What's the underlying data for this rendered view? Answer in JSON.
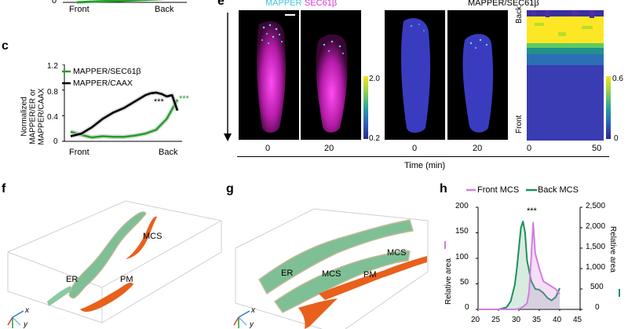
{
  "panel_b_partial": {
    "y_tick_0": "0",
    "x_labels": [
      "Front",
      "Back"
    ]
  },
  "panel_c": {
    "letter": "c",
    "ylabel_lines": [
      "Normalized",
      "MAPPER/ER or",
      "MAPPER/CAAX"
    ],
    "yticks": [
      "1.2",
      "0.8",
      "0.4",
      "0"
    ],
    "x_labels": [
      "Front",
      "Back"
    ],
    "legend": [
      "MAPPER/SEC61β",
      "MAPPER/CAAX"
    ],
    "annotations": [
      "***",
      "***"
    ],
    "colors": {
      "sec61b": "#22a02a",
      "caax": "#000000"
    }
  },
  "panel_e": {
    "letter": "e",
    "title_left_a": "MAPPER",
    "title_left_b": "SEC61β",
    "title_right": "MAPPER/SEC61β",
    "colorbar1": [
      "2.0",
      "0.2"
    ],
    "colorbar2": [
      "0.6",
      "0"
    ],
    "time_ticks": [
      "0",
      "20",
      "0",
      "20"
    ],
    "kymo_xticks": [
      "0",
      "50"
    ],
    "kymo_ylabels": [
      "Back",
      "Front"
    ],
    "xlabel": "Time (min)",
    "colors": {
      "mapper": "#3ec7e0",
      "sec61b": "#e233d6"
    }
  },
  "panel_f": {
    "letter": "f",
    "labels": [
      "MCS",
      "ER",
      "PM"
    ],
    "axes": [
      "x",
      "y"
    ]
  },
  "panel_g": {
    "letter": "g",
    "labels": [
      "MCS",
      "ER",
      "MCS",
      "PM"
    ],
    "axes": [
      "x",
      "y"
    ]
  },
  "panel_h": {
    "letter": "h",
    "legend": [
      "Front MCS",
      "Back MCS"
    ],
    "annotation": "***",
    "left_yticks": [
      "200",
      "150",
      "100",
      "50",
      "0"
    ],
    "right_yticks": [
      "2,500",
      "2,000",
      "1,500",
      "1,000",
      "500",
      "0"
    ],
    "xticks": [
      "20",
      "25",
      "30",
      "35",
      "40",
      "45"
    ],
    "left_ylabel": "Relative area",
    "right_ylabel": "Relative area",
    "colors": {
      "front": "#d27ee0",
      "back": "#1f8f5a"
    }
  },
  "chart_data": [
    {
      "type": "line",
      "panel": "c",
      "xlabel": "",
      "ylabel": "Normalized MAPPER/ER or MAPPER/CAAX",
      "ylim": [
        0,
        1.2
      ],
      "x_categories": [
        "Front",
        "Back"
      ],
      "series": [
        {
          "name": "MAPPER/SEC61β",
          "x": [
            0,
            0.1,
            0.2,
            0.3,
            0.4,
            0.5,
            0.6,
            0.7,
            0.8,
            0.9,
            0.95,
            1.0
          ],
          "values": [
            0.15,
            0.1,
            0.06,
            0.08,
            0.07,
            0.07,
            0.09,
            0.12,
            0.18,
            0.35,
            0.5,
            0.65
          ]
        },
        {
          "name": "MAPPER/CAAX",
          "x": [
            0,
            0.1,
            0.2,
            0.3,
            0.4,
            0.5,
            0.6,
            0.7,
            0.75,
            0.8,
            0.85,
            0.9,
            0.95,
            1.0
          ],
          "values": [
            0.08,
            0.12,
            0.22,
            0.35,
            0.45,
            0.52,
            0.62,
            0.72,
            0.75,
            0.76,
            0.74,
            0.7,
            0.72,
            0.48
          ]
        }
      ]
    },
    {
      "type": "area",
      "panel": "h",
      "xlim": [
        20,
        45
      ],
      "ylim_left": [
        0,
        200
      ],
      "ylim_right": [
        0,
        2500
      ],
      "series": [
        {
          "name": "Front MCS",
          "axis": "left",
          "x": [
            20,
            25,
            27,
            28,
            29,
            30,
            31,
            32,
            32.5,
            33,
            33.5,
            34,
            35,
            36,
            37,
            38,
            39,
            40
          ],
          "values": [
            0,
            0,
            0,
            0,
            0,
            1,
            5,
            12,
            35,
            100,
            170,
            110,
            80,
            55,
            50,
            45,
            40,
            30
          ]
        },
        {
          "name": "Back MCS",
          "axis": "right",
          "x": [
            20,
            25,
            27,
            28,
            29,
            29.5,
            30,
            30.5,
            31,
            31.5,
            32,
            33,
            34,
            35,
            36,
            37,
            38,
            39,
            40
          ],
          "values": [
            0,
            0,
            50,
            200,
            600,
            1000,
            1500,
            2000,
            2150,
            1900,
            1200,
            700,
            500,
            480,
            400,
            280,
            220,
            300,
            520
          ]
        }
      ]
    }
  ]
}
